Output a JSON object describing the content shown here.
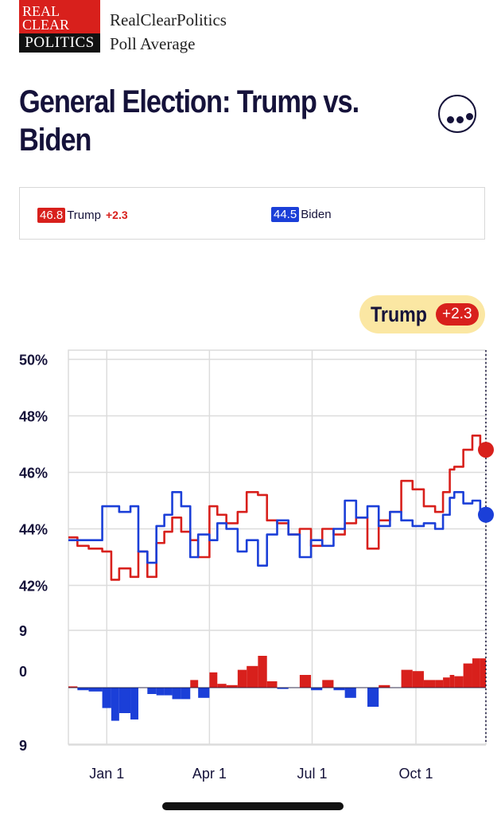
{
  "header": {
    "logo_line1": "REAL",
    "logo_line2": "CLEAR",
    "logo_line3": "POLITICS",
    "brand_name": "RealClearPolitics",
    "brand_subtitle": "Poll Average"
  },
  "title": "General Election: Trump vs. Biden",
  "legend": {
    "trump": {
      "value": "46.8",
      "name": "Trump",
      "spread": "+2.3"
    },
    "biden": {
      "value": "44.5",
      "name": "Biden"
    }
  },
  "lead_badge": {
    "name": "Trump",
    "value": "+2.3"
  },
  "colors": {
    "trump": "#d8201c",
    "biden": "#1b3fd8",
    "badge_bg": "#fbe7a3",
    "text": "#15123a"
  },
  "chart_data": {
    "type": "line",
    "title": "General Election: Trump vs. Biden",
    "xlabel": "",
    "ylabel": "",
    "ylim": [
      41,
      50
    ],
    "x_ticks": [
      {
        "label": "Jan 1",
        "day": 34
      },
      {
        "label": "Apr 1",
        "day": 125
      },
      {
        "label": "Jul 1",
        "day": 216
      },
      {
        "label": "Oct 1",
        "day": 308
      }
    ],
    "y_ticks": [
      {
        "label": "50%",
        "value": 50
      },
      {
        "label": "48%",
        "value": 48
      },
      {
        "label": "46%",
        "value": 46
      },
      {
        "label": "44%",
        "value": 44
      },
      {
        "label": "42%",
        "value": 42
      }
    ],
    "x_days": [
      0,
      8,
      18,
      30,
      38,
      45,
      55,
      62,
      70,
      78,
      85,
      92,
      100,
      108,
      115,
      125,
      132,
      140,
      150,
      158,
      168,
      176,
      185,
      195,
      205,
      215,
      225,
      235,
      245,
      255,
      265,
      275,
      285,
      295,
      305,
      315,
      325,
      332,
      338,
      342,
      350,
      358,
      365,
      370
    ],
    "series": [
      {
        "name": "Trump",
        "values": [
          43.7,
          43.4,
          43.3,
          43.2,
          42.2,
          42.6,
          42.3,
          43.2,
          42.3,
          43.5,
          43.9,
          44.4,
          43.9,
          43.6,
          43.0,
          44.8,
          44.5,
          44.2,
          44.6,
          45.3,
          45.2,
          44.3,
          44.2,
          43.8,
          44.0,
          43.4,
          44.0,
          43.8,
          44.2,
          44.4,
          43.3,
          44.3,
          44.6,
          45.7,
          45.4,
          44.8,
          44.6,
          45.3,
          46.1,
          46.2,
          46.8,
          47.3,
          46.9,
          46.8
        ]
      },
      {
        "name": "Biden",
        "values": [
          43.6,
          43.6,
          43.6,
          44.8,
          44.8,
          44.6,
          44.8,
          43.2,
          42.8,
          44.1,
          44.5,
          45.3,
          44.8,
          43.0,
          43.8,
          43.6,
          44.2,
          44.0,
          43.2,
          43.6,
          42.7,
          43.8,
          44.3,
          43.8,
          43.0,
          43.6,
          43.4,
          44.0,
          45.0,
          44.4,
          44.8,
          44.1,
          44.6,
          44.3,
          44.1,
          44.2,
          44.0,
          44.5,
          45.1,
          45.3,
          44.9,
          45.0,
          44.6,
          44.5
        ]
      },
      {
        "name": "Spread",
        "values": [
          0.1,
          -0.2,
          -0.3,
          -1.6,
          -2.6,
          -2.0,
          -2.5,
          0.0,
          -0.5,
          -0.6,
          -0.6,
          -0.9,
          -0.9,
          0.6,
          -0.8,
          1.2,
          0.3,
          0.2,
          1.4,
          1.7,
          2.5,
          0.5,
          -0.1,
          0.0,
          1.0,
          -0.2,
          0.6,
          -0.2,
          -0.8,
          0.0,
          -1.5,
          0.2,
          0.0,
          1.4,
          1.3,
          0.6,
          0.6,
          0.8,
          1.0,
          0.9,
          1.9,
          2.3,
          2.3,
          2.3
        ]
      }
    ],
    "spread_axis_labels": [
      "9",
      "0",
      "9"
    ],
    "end_markers": {
      "trump": 46.8,
      "biden": 44.5
    }
  }
}
